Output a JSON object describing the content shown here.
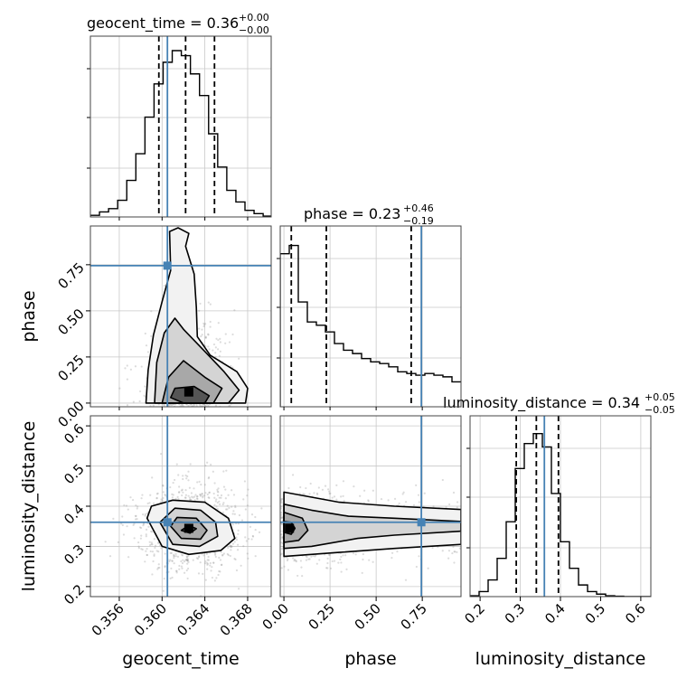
{
  "figure": {
    "titles": {
      "geocent_time": {
        "main": "geocent_time = 0.36",
        "sup": "+0.00",
        "sub": "−0.00"
      },
      "phase": {
        "main": "phase = 0.23",
        "sup": "+0.46",
        "sub": "−0.19"
      },
      "luminosity_distance": {
        "main": "luminosity_distance = 0.34",
        "sup": "+0.05",
        "sub": "−0.05"
      }
    },
    "xlabels": {
      "geocent_time": "geocent_time",
      "phase": "phase",
      "luminosity_distance": "luminosity_distance"
    },
    "ylabels": {
      "phase": "phase",
      "luminosity_distance": "luminosity_distance"
    },
    "colors": {
      "truth": "#4682b4",
      "contour": "#000000",
      "grid": "#c8c8c8",
      "points": "#9a9a9a"
    }
  },
  "chart_data": {
    "type": "corner",
    "parameters": [
      "geocent_time",
      "phase",
      "luminosity_distance"
    ],
    "truths": {
      "geocent_time": 0.3605,
      "phase": 0.745,
      "luminosity_distance": 0.36
    },
    "ranges": {
      "geocent_time": [
        0.3533,
        0.3702
      ],
      "phase": [
        -0.02,
        0.96
      ],
      "luminosity_distance": [
        0.175,
        0.625
      ]
    },
    "ticks": {
      "geocent_time": [
        0.356,
        0.36,
        0.364,
        0.368
      ],
      "phase": [
        0.0,
        0.25,
        0.5,
        0.75
      ],
      "luminosity_distance": [
        0.2,
        0.3,
        0.4,
        0.5,
        0.6
      ]
    },
    "tick_labels": {
      "geocent_time": [
        "0.356",
        "0.360",
        "0.364",
        "0.368"
      ],
      "phase": [
        "0.00",
        "0.25",
        "0.50",
        "0.75"
      ],
      "luminosity_distance": [
        "0.2",
        "0.3",
        "0.4",
        "0.5",
        "0.6"
      ]
    },
    "quantiles": {
      "geocent_time": [
        0.3597,
        0.3622,
        0.3649
      ],
      "phase": [
        0.04,
        0.23,
        0.69
      ],
      "luminosity_distance": [
        0.29,
        0.34,
        0.395
      ]
    },
    "histograms": {
      "geocent_time": {
        "bin_edges": [
          0.3533,
          0.35415,
          0.355,
          0.35585,
          0.3567,
          0.35755,
          0.3584,
          0.35925,
          0.3601,
          0.36095,
          0.3618,
          0.36265,
          0.3635,
          0.36435,
          0.3652,
          0.36605,
          0.3669,
          0.36775,
          0.3686,
          0.36945,
          0.3703
        ],
        "counts": [
          0.01,
          0.03,
          0.05,
          0.1,
          0.22,
          0.38,
          0.6,
          0.8,
          0.93,
          1.0,
          0.97,
          0.86,
          0.73,
          0.5,
          0.3,
          0.16,
          0.09,
          0.04,
          0.02,
          0.005
        ]
      },
      "phase": {
        "bin_edges": [
          -0.02,
          0.029,
          0.078,
          0.127,
          0.176,
          0.225,
          0.274,
          0.323,
          0.372,
          0.421,
          0.47,
          0.519,
          0.568,
          0.617,
          0.666,
          0.715,
          0.764,
          0.813,
          0.862,
          0.911,
          0.96
        ],
        "counts": [
          0.92,
          0.97,
          0.63,
          0.51,
          0.49,
          0.45,
          0.38,
          0.34,
          0.32,
          0.29,
          0.27,
          0.26,
          0.24,
          0.21,
          0.2,
          0.19,
          0.2,
          0.19,
          0.18,
          0.15
        ]
      },
      "luminosity_distance": {
        "bin_edges": [
          0.175,
          0.1975,
          0.22,
          0.2425,
          0.265,
          0.2875,
          0.31,
          0.3325,
          0.355,
          0.3775,
          0.4,
          0.4225,
          0.445,
          0.4675,
          0.49,
          0.5125,
          0.535,
          0.5575,
          0.58,
          0.6025,
          0.625
        ],
        "counts": [
          0.005,
          0.03,
          0.1,
          0.23,
          0.45,
          0.77,
          0.92,
          0.98,
          0.9,
          0.62,
          0.33,
          0.17,
          0.07,
          0.03,
          0.015,
          0.005,
          0.002,
          0.0,
          0.0,
          0.0
        ]
      }
    },
    "joint": {
      "geocent_time__phase": {
        "center": [
          0.3625,
          0.06
        ],
        "levels": [
          {
            "polygon": [
              [
                0.3608,
                0.03
              ],
              [
                0.362,
                0.0
              ],
              [
                0.364,
                0.0
              ],
              [
                0.3644,
                0.04
              ],
              [
                0.363,
                0.09
              ],
              [
                0.3612,
                0.08
              ]
            ]
          },
          {
            "polygon": [
              [
                0.36,
                0.0
              ],
              [
                0.3648,
                0.0
              ],
              [
                0.3656,
                0.08
              ],
              [
                0.364,
                0.14
              ],
              [
                0.362,
                0.23
              ],
              [
                0.3606,
                0.14
              ]
            ]
          },
          {
            "polygon": [
              [
                0.3593,
                0.0
              ],
              [
                0.3662,
                0.0
              ],
              [
                0.3672,
                0.07
              ],
              [
                0.3658,
                0.17
              ],
              [
                0.364,
                0.28
              ],
              [
                0.362,
                0.4
              ],
              [
                0.3612,
                0.46
              ],
              [
                0.3602,
                0.38
              ],
              [
                0.3595,
                0.22
              ]
            ]
          },
          {
            "polygon": [
              [
                0.3585,
                0.0
              ],
              [
                0.3678,
                0.0
              ],
              [
                0.368,
                0.08
              ],
              [
                0.367,
                0.17
              ],
              [
                0.3645,
                0.26
              ],
              [
                0.3633,
                0.36
              ],
              [
                0.3632,
                0.52
              ],
              [
                0.363,
                0.7
              ],
              [
                0.3622,
                0.85
              ],
              [
                0.3625,
                0.92
              ],
              [
                0.3615,
                0.95
              ],
              [
                0.3607,
                0.93
              ],
              [
                0.3608,
                0.72
              ],
              [
                0.36,
                0.55
              ],
              [
                0.3592,
                0.37
              ],
              [
                0.3587,
                0.18
              ]
            ]
          }
        ]
      },
      "geocent_time__luminosity_distance": {
        "center": [
          0.3625,
          0.345
        ],
        "levels": [
          {
            "polygon": [
              [
                0.3618,
                0.34
              ],
              [
                0.3626,
                0.333
              ],
              [
                0.3632,
                0.344
              ],
              [
                0.3625,
                0.352
              ]
            ]
          },
          {
            "polygon": [
              [
                0.3608,
                0.35
              ],
              [
                0.3618,
                0.32
              ],
              [
                0.3636,
                0.318
              ],
              [
                0.3642,
                0.34
              ],
              [
                0.3632,
                0.37
              ],
              [
                0.3614,
                0.372
              ]
            ]
          },
          {
            "polygon": [
              [
                0.3598,
                0.36
              ],
              [
                0.361,
                0.305
              ],
              [
                0.3635,
                0.3
              ],
              [
                0.3652,
                0.325
              ],
              [
                0.365,
                0.36
              ],
              [
                0.3636,
                0.39
              ],
              [
                0.3612,
                0.395
              ]
            ]
          },
          {
            "polygon": [
              [
                0.3586,
                0.37
              ],
              [
                0.36,
                0.3
              ],
              [
                0.3625,
                0.28
              ],
              [
                0.3655,
                0.29
              ],
              [
                0.3668,
                0.32
              ],
              [
                0.3662,
                0.37
              ],
              [
                0.364,
                0.41
              ],
              [
                0.361,
                0.415
              ],
              [
                0.359,
                0.4
              ]
            ]
          }
        ]
      },
      "phase__luminosity_distance": {
        "center": [
          0.03,
          0.345
        ],
        "levels": [
          {
            "polygon": [
              [
                0.0,
                0.335
              ],
              [
                0.04,
                0.33
              ],
              [
                0.06,
                0.345
              ],
              [
                0.04,
                0.36
              ],
              [
                0.0,
                0.362
              ]
            ]
          },
          {
            "polygon": [
              [
                0.0,
                0.31
              ],
              [
                0.08,
                0.315
              ],
              [
                0.13,
                0.34
              ],
              [
                0.1,
                0.37
              ],
              [
                0.0,
                0.385
              ]
            ]
          },
          {
            "polygon": [
              [
                0.0,
                0.295
              ],
              [
                0.15,
                0.3
              ],
              [
                0.4,
                0.32
              ],
              [
                0.6,
                0.328
              ],
              [
                0.96,
                0.338
              ],
              [
                0.96,
                0.362
              ],
              [
                0.6,
                0.37
              ],
              [
                0.35,
                0.375
              ],
              [
                0.15,
                0.39
              ],
              [
                0.0,
                0.405
              ]
            ]
          },
          {
            "polygon": [
              [
                0.0,
                0.275
              ],
              [
                0.3,
                0.285
              ],
              [
                0.6,
                0.295
              ],
              [
                0.96,
                0.305
              ],
              [
                0.96,
                0.392
              ],
              [
                0.6,
                0.4
              ],
              [
                0.3,
                0.41
              ],
              [
                0.0,
                0.435
              ]
            ]
          }
        ]
      }
    }
  }
}
